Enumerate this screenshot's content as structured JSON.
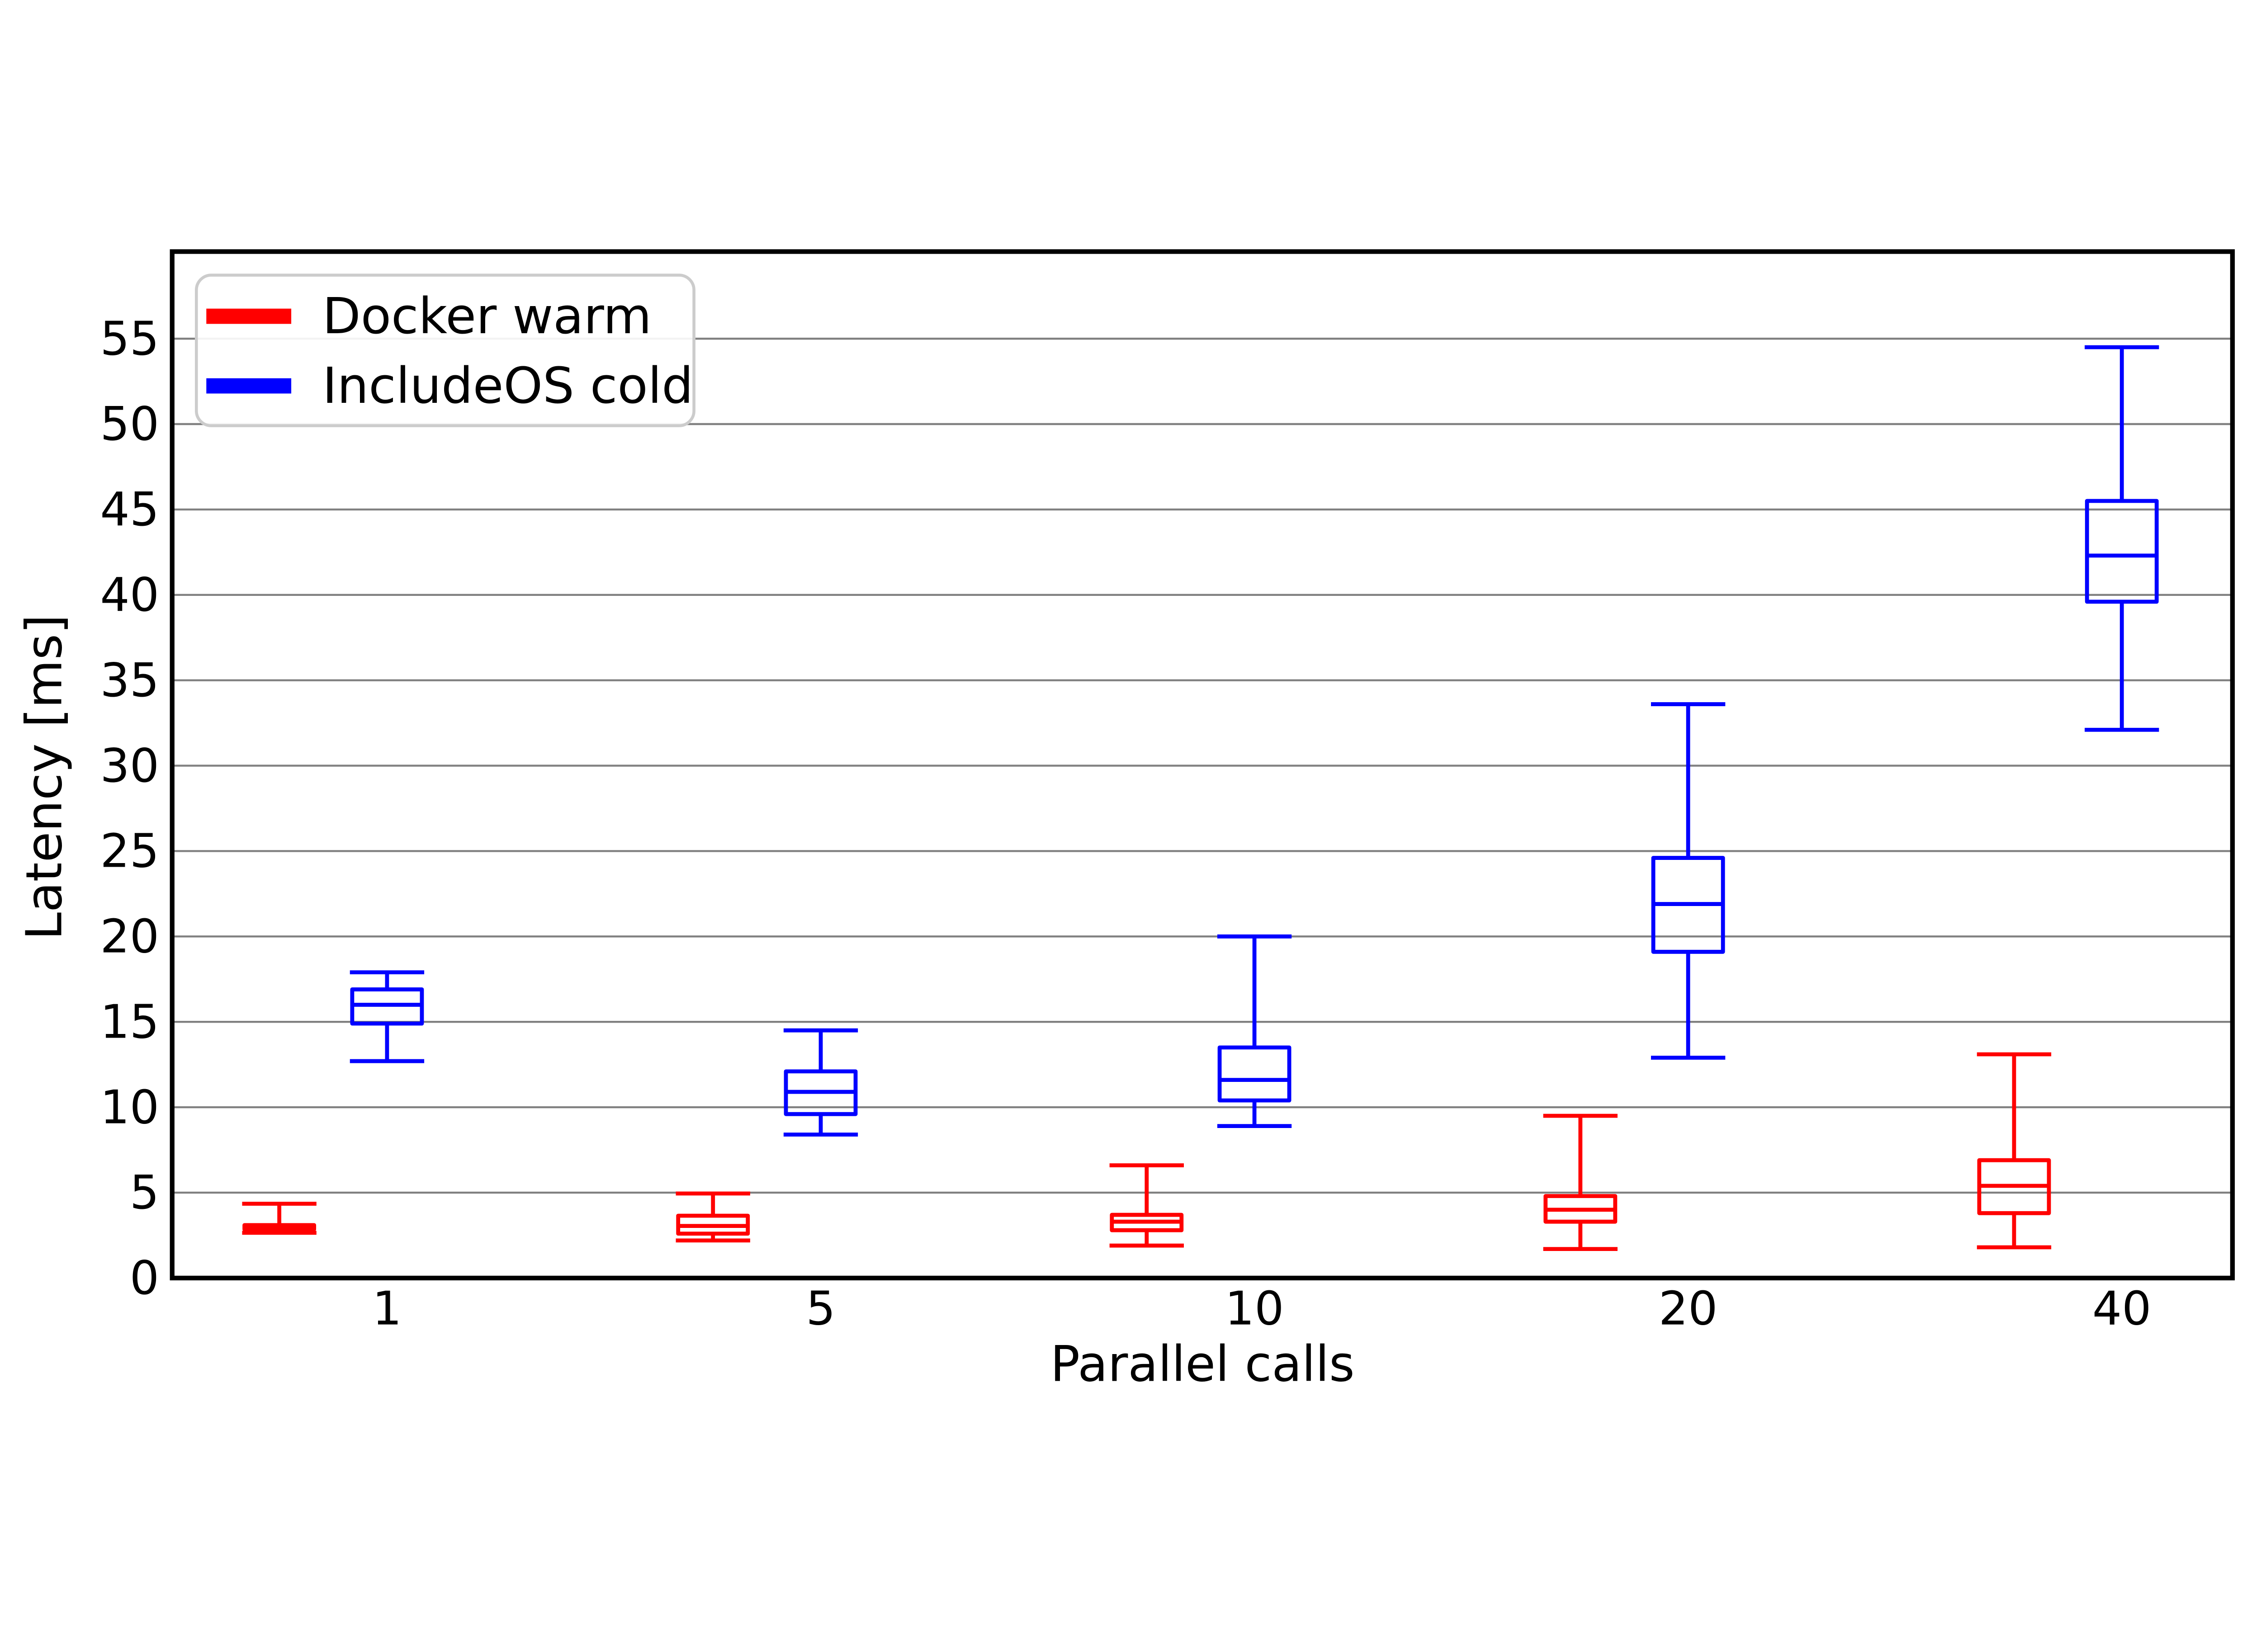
{
  "chart_data": {
    "type": "boxplot",
    "title": "",
    "xlabel": "Parallel calls",
    "ylabel": "Latency [ms]",
    "categories": [
      "1",
      "5",
      "10",
      "20",
      "40"
    ],
    "yticks": [
      0,
      5,
      10,
      15,
      20,
      25,
      30,
      35,
      40,
      45,
      50,
      55
    ],
    "ylim": [
      0,
      60
    ],
    "grid": "horizontal",
    "grid_color": "#808080",
    "axis_color": "#000000",
    "background_color": "#ffffff",
    "legend_position": "upper left",
    "series": [
      {
        "name": "Docker warm",
        "color": "#ff0000",
        "boxes": [
          {
            "whislo": 2.65,
            "q1": 2.85,
            "med": 2.95,
            "q3": 3.1,
            "whishi": 4.35
          },
          {
            "whislo": 2.2,
            "q1": 2.6,
            "med": 3.05,
            "q3": 3.65,
            "whishi": 4.95
          },
          {
            "whislo": 1.9,
            "q1": 2.8,
            "med": 3.3,
            "q3": 3.7,
            "whishi": 6.6
          },
          {
            "whislo": 1.7,
            "q1": 3.3,
            "med": 4.0,
            "q3": 4.8,
            "whishi": 9.5
          },
          {
            "whislo": 1.8,
            "q1": 3.8,
            "med": 5.4,
            "q3": 6.9,
            "whishi": 13.1
          }
        ]
      },
      {
        "name": "IncludeOS cold",
        "color": "#0000ff",
        "boxes": [
          {
            "whislo": 12.7,
            "q1": 14.9,
            "med": 16.0,
            "q3": 16.9,
            "whishi": 17.9
          },
          {
            "whislo": 8.4,
            "q1": 9.6,
            "med": 10.9,
            "q3": 12.1,
            "whishi": 14.5
          },
          {
            "whislo": 8.9,
            "q1": 10.4,
            "med": 11.6,
            "q3": 13.5,
            "whishi": 20.0
          },
          {
            "whislo": 12.9,
            "q1": 19.1,
            "med": 21.9,
            "q3": 24.6,
            "whishi": 33.6
          },
          {
            "whislo": 32.1,
            "q1": 39.6,
            "med": 42.3,
            "q3": 45.5,
            "whishi": 54.5
          }
        ]
      }
    ]
  }
}
